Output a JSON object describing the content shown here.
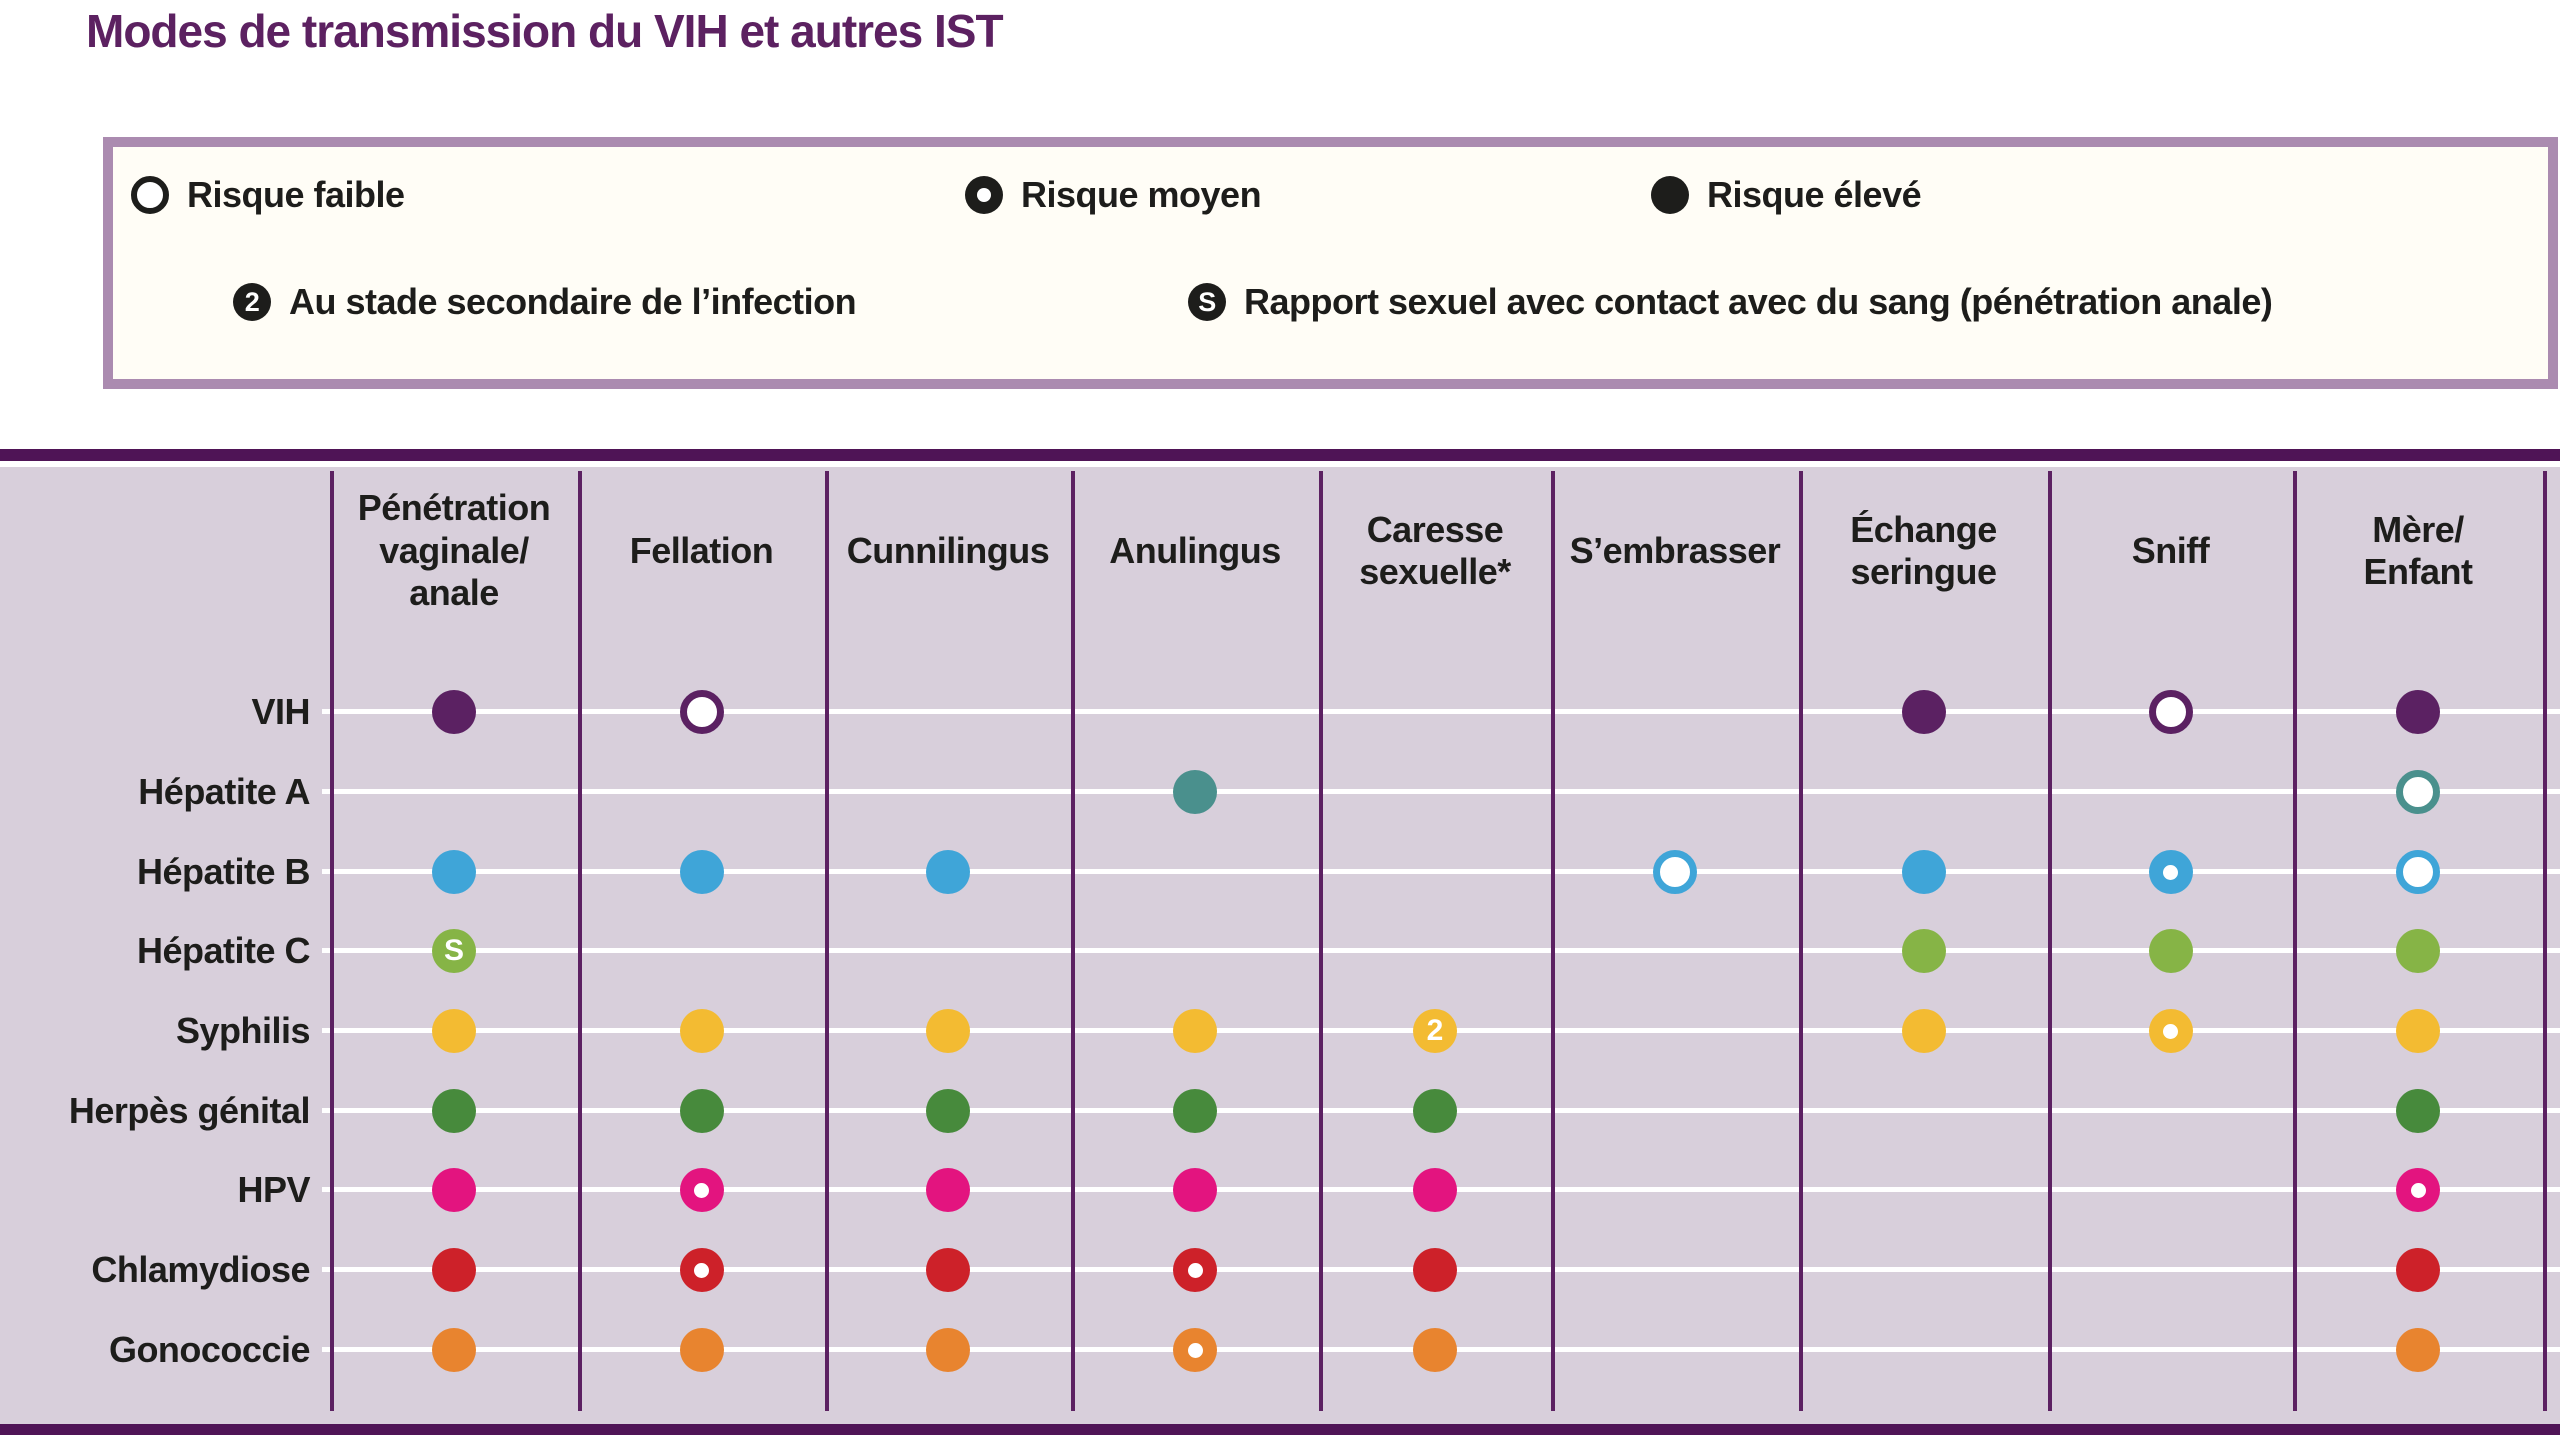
{
  "title": "Modes de transmission du VIH et autres IST",
  "legend": {
    "risk_levels": [
      {
        "code": "L",
        "label": "Risque faible"
      },
      {
        "code": "M",
        "label": "Risque moyen"
      },
      {
        "code": "H",
        "label": "Risque élevé"
      }
    ],
    "annotations": [
      {
        "glyph": "2",
        "label": "Au stade secondaire de l’infection"
      },
      {
        "glyph": "S",
        "label": "Rapport sexuel avec contact avec du sang (pénétration anale)"
      }
    ]
  },
  "colors": {
    "title": "#5c2161",
    "frame": "#ab8bb0",
    "legend_bg": "#fffdf6",
    "rule": "#4f1456",
    "table_bg": "#d8cfdb",
    "grid_line": "#ffffff",
    "column_line": "#5c2162",
    "text": "#1d1d1b"
  },
  "chart_data": {
    "type": "table",
    "title": "Modes de transmission du VIH et autres IST",
    "columns": [
      "Pénétration\nvaginale/\nanale",
      "Fellation",
      "Cunnilingus",
      "Anulingus",
      "Caresse\nsexuelle*",
      "S’embrasser",
      "Échange\nseringue",
      "Sniff",
      "Mère/\nEnfant"
    ],
    "cell_codes": {
      "H": "Risque élevé",
      "M": "Risque moyen",
      "L": "Risque faible",
      "H2": "Risque élevé — au stade secondaire de l’infection",
      "HS": "Risque élevé — rapport sexuel avec contact avec du sang (pénétration anale)",
      "": "aucun risque indiqué"
    },
    "rows": [
      {
        "label": "VIH",
        "color": "#5b2162",
        "cells": [
          "H",
          "L",
          "",
          "",
          "",
          "",
          "H",
          "L",
          "H"
        ]
      },
      {
        "label": "Hépatite A",
        "color": "#4a908d",
        "cells": [
          "",
          "",
          "",
          "H",
          "",
          "",
          "",
          "",
          "L"
        ]
      },
      {
        "label": "Hépatite B",
        "color": "#3fa5d8",
        "cells": [
          "H",
          "H",
          "H",
          "",
          "",
          "L",
          "H",
          "M",
          "L"
        ]
      },
      {
        "label": "Hépatite C",
        "color": "#86b446",
        "cells": [
          "HS",
          "",
          "",
          "",
          "",
          "",
          "H",
          "H",
          "H"
        ]
      },
      {
        "label": "Syphilis",
        "color": "#f3bb32",
        "cells": [
          "H",
          "H",
          "H",
          "H",
          "H2",
          "",
          "H",
          "M",
          "H"
        ]
      },
      {
        "label": "Herpès génital",
        "color": "#478a3c",
        "cells": [
          "H",
          "H",
          "H",
          "H",
          "H",
          "",
          "",
          "",
          "H"
        ]
      },
      {
        "label": "HPV",
        "color": "#e3147f",
        "cells": [
          "H",
          "M",
          "H",
          "H",
          "H",
          "",
          "",
          "",
          "M"
        ]
      },
      {
        "label": "Chlamydiose",
        "color": "#cd2129",
        "cells": [
          "H",
          "M",
          "H",
          "M",
          "H",
          "",
          "",
          "",
          "H"
        ]
      },
      {
        "label": "Gonococcie",
        "color": "#e8842f",
        "cells": [
          "H",
          "H",
          "H",
          "M",
          "H",
          "",
          "",
          "",
          "H"
        ]
      }
    ]
  }
}
